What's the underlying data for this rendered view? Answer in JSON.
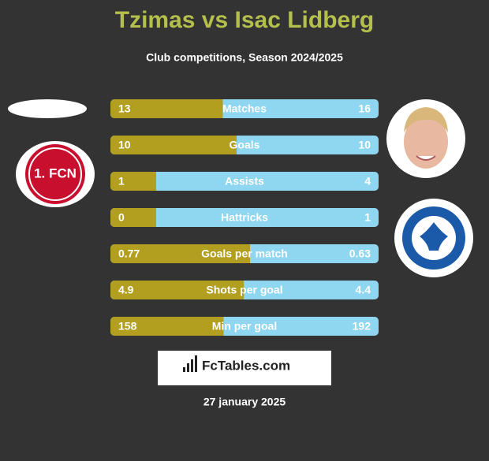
{
  "chart_data": {
    "type": "bar",
    "title": "Tzimas vs Isac Lidberg",
    "subtitle": "Club competitions, Season 2024/2025",
    "categories": [
      "Matches",
      "Goals",
      "Assists",
      "Hattricks",
      "Goals per match",
      "Shots per goal",
      "Min per goal"
    ],
    "series": [
      {
        "color": "#b29e1f",
        "values": [
          13,
          10,
          1,
          0,
          0.77,
          4.9,
          158
        ]
      },
      {
        "color": "#8fd6f0",
        "values": [
          16,
          10,
          4,
          1,
          0.63,
          4.4,
          192
        ]
      }
    ]
  },
  "left_badge": "1. FCN",
  "brand": "FcTables.com",
  "date": "27 january 2025"
}
